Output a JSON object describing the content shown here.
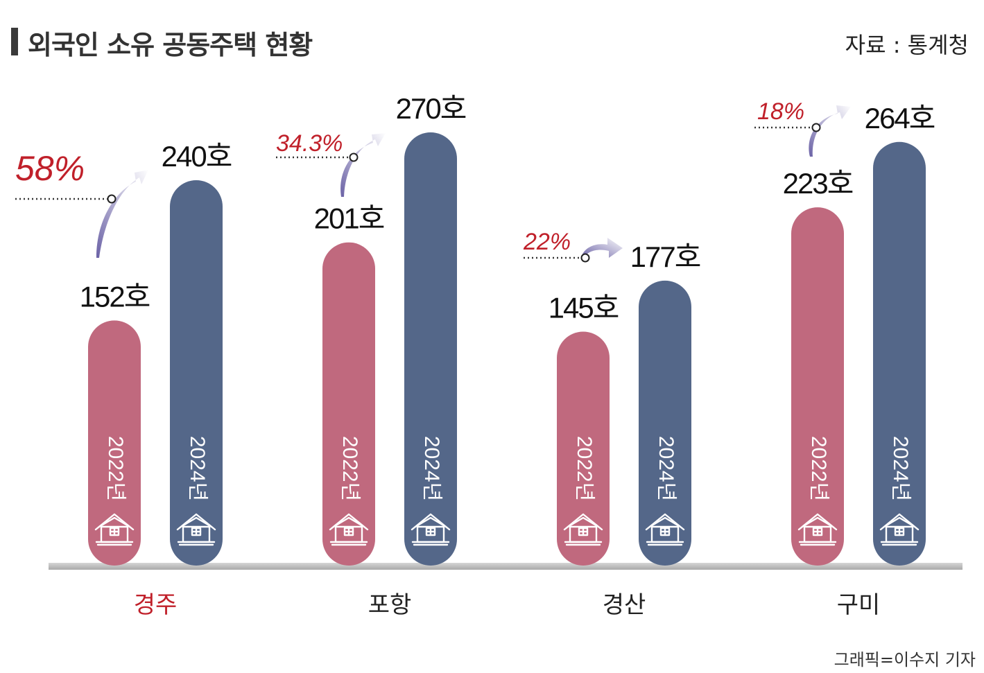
{
  "title": "외국인 소유 공동주택 현황",
  "source": "자료 : 통계청",
  "credit": "그래픽=이수지 기자",
  "colors": {
    "bar_2022": "#c0697e",
    "bar_2024": "#546789",
    "growth_label": "#c0202a",
    "highlight_category": "#c0202a",
    "arrow": "#7f77b3",
    "baseline": "#b9b9b9"
  },
  "icons": [
    "house-icon",
    "growth-arrow-icon"
  ],
  "chart_data": {
    "type": "bar",
    "categories": [
      "경주",
      "포항",
      "경산",
      "구미"
    ],
    "highlight_category": "경주",
    "unit": "호",
    "series": [
      {
        "name": "2022년",
        "values": [
          152,
          201,
          145,
          223
        ]
      },
      {
        "name": "2024년",
        "values": [
          240,
          270,
          177,
          264
        ]
      }
    ],
    "value_labels": {
      "2022년": [
        "152호",
        "201호",
        "145호",
        "223호"
      ],
      "2024년": [
        "240호",
        "270호",
        "177호",
        "264호"
      ]
    },
    "growth_labels": [
      "58%",
      "34.3%",
      "22%",
      "18%"
    ],
    "ylim": [
      0,
      300
    ],
    "grid": false,
    "legend": "none"
  }
}
